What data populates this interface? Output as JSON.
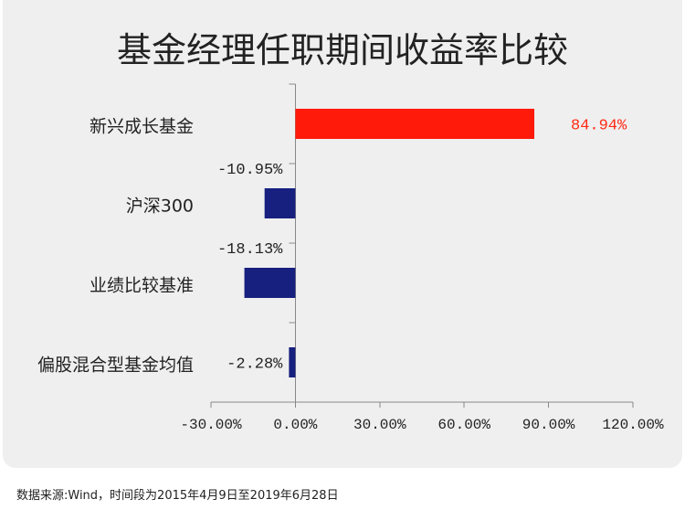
{
  "chart_data": {
    "type": "bar",
    "horizontal": true,
    "title": "基金经理任职期间收益率比较",
    "categories": [
      "新兴成长基金",
      "沪深300",
      "业绩比较基准",
      "偏股混合型基金均值"
    ],
    "values": [
      84.94,
      -10.95,
      -18.13,
      -2.28
    ],
    "data_labels": [
      "84.94%",
      "-10.95%",
      "-18.13%",
      "-2.28%"
    ],
    "xlim": [
      -30,
      120
    ],
    "xticks": [
      -30,
      0,
      30,
      60,
      90,
      120
    ],
    "xtick_labels": [
      "-30.00%",
      "0.00%",
      "30.00%",
      "60.00%",
      "90.00%",
      "120.00%"
    ],
    "grid": false,
    "bar_colors": [
      "#ff1a0a",
      "#17207f",
      "#17207f",
      "#17207f"
    ],
    "data_label_colors": [
      "#ff2a14",
      "#222222",
      "#222222",
      "#222222"
    ]
  },
  "footer": {
    "source_note": "数据来源:Wind，时间段为2015年4月9日至2019年6月28日"
  },
  "colors": {
    "panel_background": "#efefef",
    "page_background": "#ffffff",
    "axis": "#888888",
    "text": "#222222"
  }
}
